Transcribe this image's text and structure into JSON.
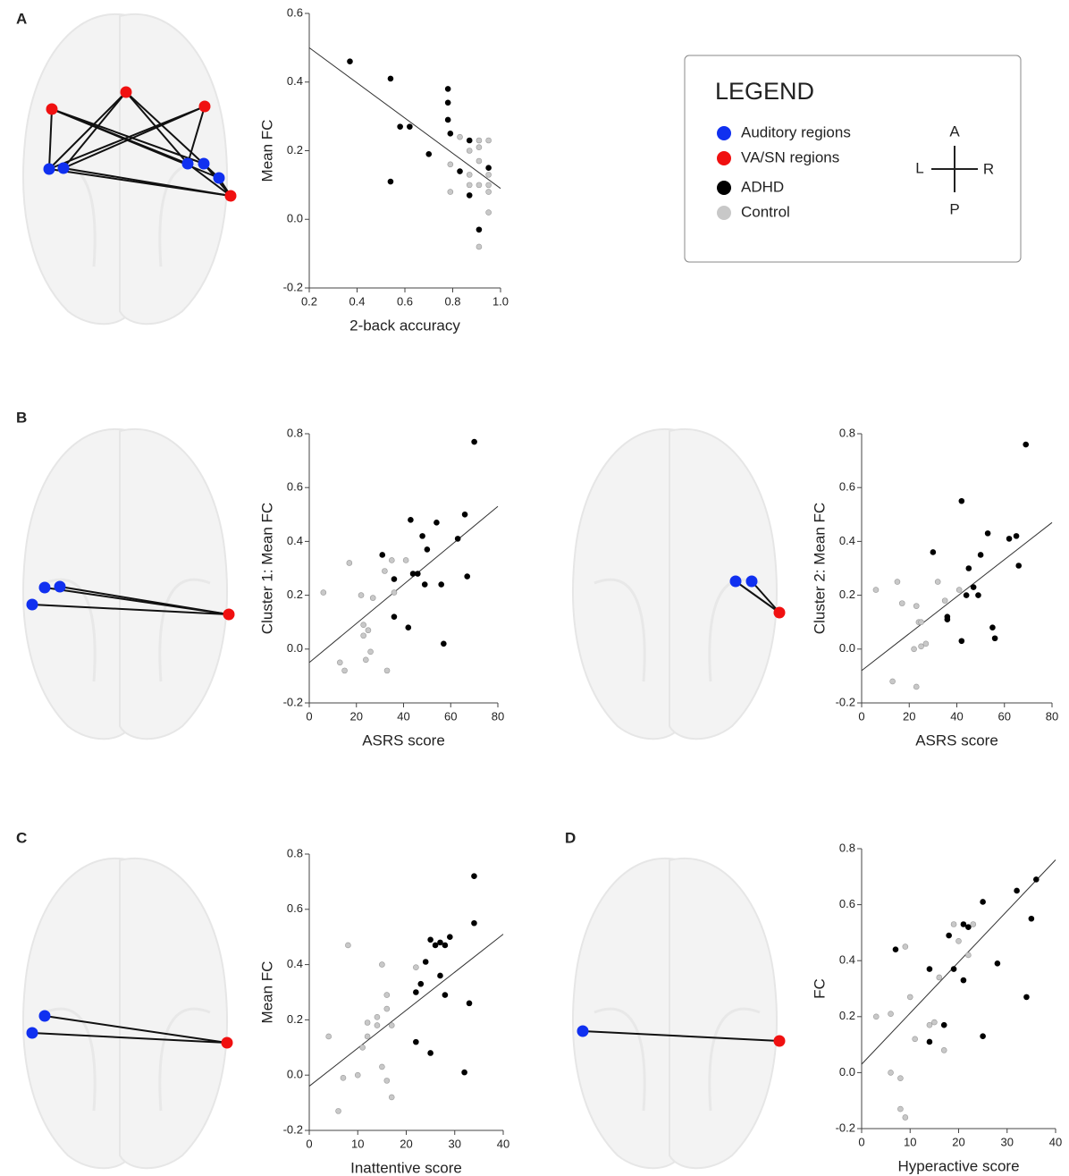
{
  "panels": [
    "A",
    "B",
    "C",
    "D"
  ],
  "legend": {
    "title": "LEGEND",
    "items": [
      {
        "label": "Auditory regions",
        "color": "#1030f0"
      },
      {
        "label": "VA/SN regions",
        "color": "#f01010"
      },
      {
        "label": "ADHD",
        "color": "#000000"
      },
      {
        "label": "Control",
        "color": "#c8c8c8"
      }
    ],
    "compass": {
      "top": "A",
      "left": "L",
      "right": "R",
      "bottom": "P"
    }
  },
  "chart_data": [
    {
      "type": "scatter",
      "xlabel": "2-back accuracy",
      "ylabel": "Mean FC",
      "xlim": [
        0.2,
        1.0
      ],
      "ylim": [
        -0.2,
        0.6
      ],
      "xticks": [
        0.2,
        0.4,
        0.6,
        0.8,
        {
          "value": 1,
          "label": "1.0"
        }
      ],
      "yticks": [
        -0.2,
        {
          "value": 0,
          "label": "0.0"
        },
        0.2,
        0.4,
        0.6
      ],
      "series": [
        {
          "color": "#000000",
          "x": [
            0.37,
            0.54,
            0.58,
            0.62,
            0.7,
            0.54,
            0.78,
            0.78,
            0.78,
            0.79,
            0.87,
            0.83,
            0.87,
            0.91,
            0.95
          ],
          "values": [
            0.46,
            0.41,
            0.27,
            0.27,
            0.19,
            0.11,
            0.38,
            0.34,
            0.29,
            0.25,
            0.23,
            0.14,
            0.07,
            -0.03,
            0.15
          ]
        },
        {
          "color": "#c8c8c8",
          "x": [
            0.83,
            0.79,
            0.79,
            0.87,
            0.87,
            0.87,
            0.91,
            0.91,
            0.91,
            0.95,
            0.95,
            0.95,
            0.95,
            0.95,
            0.91,
            0.91
          ],
          "values": [
            0.24,
            0.16,
            0.08,
            0.2,
            0.13,
            0.1,
            0.23,
            0.17,
            0.1,
            0.23,
            0.13,
            0.08,
            0.1,
            0.02,
            -0.08,
            0.21
          ]
        }
      ],
      "fit": {
        "x": [
          0.2,
          1.0
        ],
        "y": [
          0.5,
          0.09
        ]
      }
    },
    {
      "type": "scatter",
      "xlabel": "ASRS score",
      "ylabel": "Cluster 1: Mean FC",
      "xlim": [
        0,
        80
      ],
      "ylim": [
        -0.2,
        0.8
      ],
      "xticks": [
        0,
        20,
        40,
        60,
        80
      ],
      "yticks": [
        -0.2,
        {
          "value": 0,
          "label": "0.0"
        },
        0.2,
        0.4,
        0.6,
        0.8
      ],
      "series": [
        {
          "color": "#000000",
          "x": [
            70,
            66,
            63,
            67,
            54,
            43,
            48,
            50,
            44,
            46,
            49,
            56,
            31,
            36,
            36,
            42,
            57
          ],
          "values": [
            0.77,
            0.5,
            0.41,
            0.27,
            0.47,
            0.48,
            0.42,
            0.37,
            0.28,
            0.28,
            0.24,
            0.24,
            0.35,
            0.26,
            0.12,
            0.08,
            0.02
          ]
        },
        {
          "color": "#c8c8c8",
          "x": [
            17,
            35,
            41,
            32,
            36,
            22,
            27,
            6,
            23,
            25,
            23,
            26,
            24,
            13,
            15,
            33
          ],
          "values": [
            0.32,
            0.33,
            0.33,
            0.29,
            0.21,
            0.2,
            0.19,
            0.21,
            0.09,
            0.07,
            0.05,
            -0.01,
            -0.04,
            -0.05,
            -0.08,
            -0.08
          ]
        }
      ],
      "fit": {
        "x": [
          0,
          80
        ],
        "y": [
          -0.05,
          0.53
        ]
      }
    },
    {
      "type": "scatter",
      "xlabel": "ASRS score",
      "ylabel": "Cluster 2: Mean FC",
      "xlim": [
        0,
        80
      ],
      "ylim": [
        -0.2,
        0.8
      ],
      "xticks": [
        0,
        20,
        40,
        60,
        80
      ],
      "yticks": [
        -0.2,
        {
          "value": 0,
          "label": "0.0"
        },
        0.2,
        0.4,
        0.6,
        0.8
      ],
      "series": [
        {
          "color": "#000000",
          "x": [
            69,
            42,
            53,
            65,
            62,
            50,
            45,
            30,
            47,
            44,
            49,
            66,
            36,
            36,
            42,
            55,
            56
          ],
          "values": [
            0.76,
            0.55,
            0.43,
            0.42,
            0.41,
            0.35,
            0.3,
            0.36,
            0.23,
            0.2,
            0.2,
            0.31,
            0.12,
            0.11,
            0.03,
            0.08,
            0.04
          ]
        },
        {
          "color": "#c8c8c8",
          "x": [
            15,
            6,
            32,
            41,
            35,
            23,
            17,
            24,
            25,
            25,
            22,
            27,
            13,
            23
          ],
          "values": [
            0.25,
            0.22,
            0.25,
            0.22,
            0.18,
            0.16,
            0.17,
            0.1,
            0.1,
            0.01,
            0.0,
            0.02,
            -0.12,
            -0.14
          ]
        }
      ],
      "fit": {
        "x": [
          0,
          80
        ],
        "y": [
          -0.08,
          0.47
        ]
      }
    },
    {
      "type": "scatter",
      "xlabel": "Inattentive score",
      "ylabel": "Mean FC",
      "xlim": [
        0,
        40
      ],
      "ylim": [
        -0.2,
        0.8
      ],
      "xticks": [
        0,
        10,
        20,
        30,
        40
      ],
      "yticks": [
        -0.2,
        {
          "value": 0,
          "label": "0.0"
        },
        0.2,
        0.4,
        0.6,
        0.8
      ],
      "series": [
        {
          "color": "#000000",
          "x": [
            34,
            34,
            25,
            27,
            29,
            28,
            26,
            24,
            22,
            23,
            27,
            28,
            33,
            22,
            25,
            32
          ],
          "values": [
            0.72,
            0.55,
            0.49,
            0.48,
            0.5,
            0.47,
            0.47,
            0.41,
            0.3,
            0.33,
            0.36,
            0.29,
            0.26,
            0.12,
            0.08,
            0.01
          ]
        },
        {
          "color": "#c8c8c8",
          "x": [
            8,
            15,
            22,
            16,
            16,
            14,
            12,
            14,
            17,
            12,
            4,
            11,
            15,
            16,
            10,
            7,
            17,
            6
          ],
          "values": [
            0.47,
            0.4,
            0.39,
            0.29,
            0.24,
            0.21,
            0.19,
            0.18,
            0.18,
            0.14,
            0.14,
            0.1,
            0.03,
            -0.02,
            0.0,
            -0.01,
            -0.08,
            -0.13
          ]
        }
      ],
      "fit": {
        "x": [
          0,
          40
        ],
        "y": [
          -0.04,
          0.51
        ]
      }
    },
    {
      "type": "scatter",
      "xlabel": "Hyperactive score",
      "ylabel": "FC",
      "xlim": [
        0,
        40
      ],
      "ylim": [
        -0.2,
        0.8
      ],
      "xticks": [
        0,
        10,
        20,
        30,
        40
      ],
      "yticks": [
        -0.2,
        {
          "value": 0,
          "label": "0.0"
        },
        0.2,
        0.4,
        0.6,
        0.8
      ],
      "series": [
        {
          "color": "#000000",
          "x": [
            36,
            32,
            35,
            25,
            21,
            22,
            18,
            28,
            7,
            14,
            19,
            21,
            34,
            17,
            14,
            25
          ],
          "values": [
            0.69,
            0.65,
            0.55,
            0.61,
            0.53,
            0.52,
            0.49,
            0.39,
            0.44,
            0.37,
            0.37,
            0.33,
            0.27,
            0.17,
            0.11,
            0.13
          ]
        },
        {
          "color": "#c8c8c8",
          "x": [
            9,
            19,
            23,
            22,
            20,
            16,
            10,
            3,
            6,
            14,
            15,
            11,
            17,
            6,
            8,
            8,
            9
          ],
          "values": [
            0.45,
            0.53,
            0.53,
            0.42,
            0.47,
            0.34,
            0.27,
            0.2,
            0.21,
            0.17,
            0.18,
            0.12,
            0.08,
            0.0,
            -0.02,
            -0.13,
            -0.16
          ]
        }
      ],
      "fit": {
        "x": [
          0,
          40
        ],
        "y": [
          0.03,
          0.76
        ]
      }
    }
  ]
}
